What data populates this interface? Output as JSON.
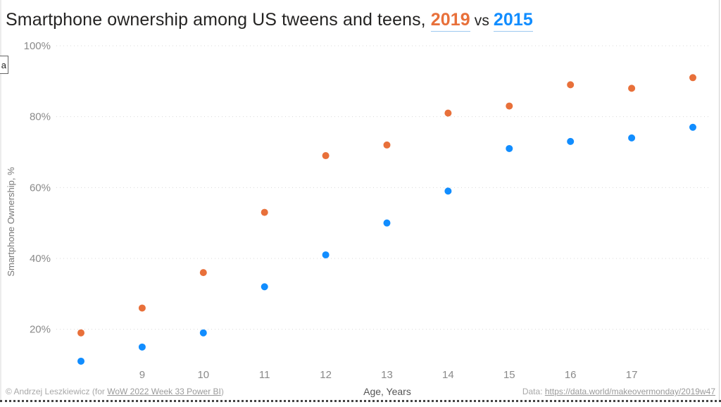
{
  "title": {
    "prefix": "Smartphone ownership among US tweens and teens, ",
    "year_a": "2019",
    "vs": " vs ",
    "year_b": "2015"
  },
  "colors": {
    "series_2019": "#E8703A",
    "series_2015": "#118DFF"
  },
  "tooltip_fragment": "a",
  "footer": {
    "credit_prefix": "© Andrzej Leszkiewicz (for ",
    "credit_link": "WoW 2022 Week 33 Power BI",
    "credit_suffix": ")",
    "data_prefix": "Data: ",
    "data_link": "https://data.world/makeovermonday/2019w47"
  },
  "chart_data": {
    "type": "scatter",
    "title": "Smartphone ownership among US tweens and teens, 2019 vs 2015",
    "xlabel": "Age, Years",
    "ylabel": "Smartphone Ownership, %",
    "x": [
      8,
      9,
      10,
      11,
      12,
      13,
      14,
      15,
      16,
      17,
      18
    ],
    "x_tick_labels": [
      "9",
      "10",
      "11",
      "12",
      "13",
      "14",
      "15",
      "16",
      "17"
    ],
    "x_ticks": [
      9,
      10,
      11,
      12,
      13,
      14,
      15,
      16,
      17
    ],
    "xlim": [
      8,
      18
    ],
    "y_ticks": [
      20,
      40,
      60,
      80,
      100
    ],
    "y_tick_labels": [
      "20%",
      "40%",
      "60%",
      "80%",
      "100%"
    ],
    "ylim": [
      10,
      100
    ],
    "grid": true,
    "legend": "in-title",
    "series": [
      {
        "name": "2019",
        "values": [
          19,
          26,
          36,
          53,
          69,
          72,
          81,
          83,
          89,
          88,
          91
        ]
      },
      {
        "name": "2015",
        "values": [
          11,
          15,
          19,
          32,
          41,
          50,
          59,
          71,
          73,
          74,
          77
        ]
      }
    ]
  }
}
